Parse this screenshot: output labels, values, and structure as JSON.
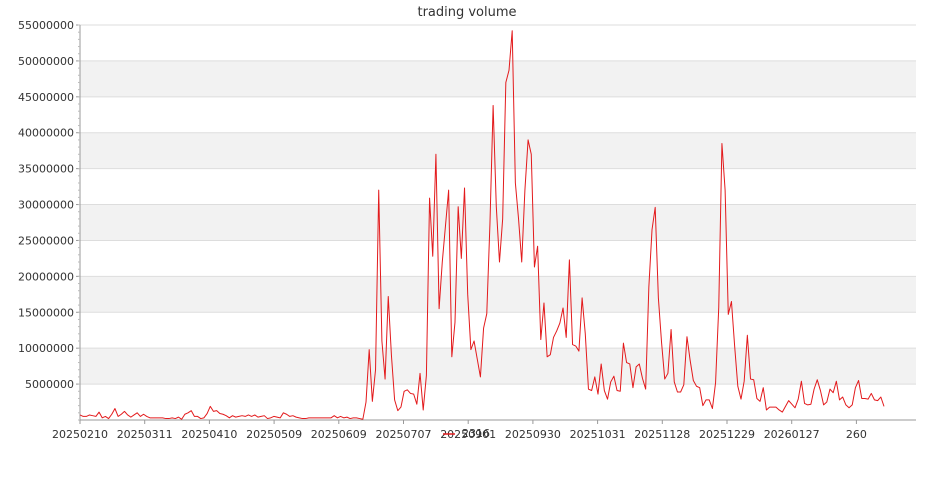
{
  "chart_data": {
    "type": "line",
    "title": "trading volume",
    "xlabel": "",
    "ylabel": "",
    "ylim": [
      0,
      55000000
    ],
    "y_ticks": [
      5000000,
      10000000,
      15000000,
      20000000,
      25000000,
      30000000,
      35000000,
      40000000,
      45000000,
      50000000,
      55000000
    ],
    "x_tick_labels": [
      "20250210",
      "20250311",
      "20250410",
      "20250509",
      "20250609",
      "20250707",
      "20250901",
      "20250930",
      "20251031",
      "20251128",
      "20251229",
      "20260127",
      "260"
    ],
    "grid": "horizontal bands",
    "legend_position": "bottom-center",
    "series": [
      {
        "name": "2316",
        "color": "#e31a1c",
        "values": [
          700000,
          500000,
          500000,
          700000,
          600000,
          500000,
          1100000,
          300000,
          500000,
          200000,
          800000,
          1600000,
          500000,
          800000,
          1200000,
          700000,
          400000,
          700000,
          1000000,
          500000,
          800000,
          500000,
          300000,
          300000,
          300000,
          300000,
          300000,
          200000,
          200000,
          300000,
          200000,
          400000,
          100000,
          800000,
          1000000,
          1300000,
          500000,
          500000,
          200000,
          300000,
          900000,
          1900000,
          1200000,
          1300000,
          900000,
          800000,
          600000,
          300000,
          600000,
          400000,
          500000,
          600000,
          500000,
          700000,
          500000,
          700000,
          400000,
          500000,
          600000,
          200000,
          300000,
          500000,
          400000,
          300000,
          1000000,
          800000,
          500000,
          600000,
          400000,
          300000,
          200000,
          200000,
          300000,
          300000,
          300000,
          300000,
          300000,
          300000,
          300000,
          300000,
          600000,
          300000,
          500000,
          300000,
          400000,
          200000,
          300000,
          300000,
          200000,
          100000,
          2500000,
          9800000,
          2600000,
          7000000,
          32000000,
          11000000,
          5700000,
          17200000,
          9000000,
          2800000,
          1300000,
          1800000,
          4000000,
          4200000,
          3700000,
          3600000,
          2200000,
          6500000,
          1400000,
          6200000,
          30900000,
          22800000,
          37000000,
          15500000,
          22000000,
          27000000,
          32000000,
          8800000,
          13600000,
          29700000,
          22500000,
          32300000,
          17500000,
          9800000,
          11000000,
          8500000,
          6000000,
          12800000,
          14800000,
          27300000,
          43800000,
          29700000,
          22000000,
          28000000,
          47000000,
          48700000,
          54200000,
          33000000,
          28000000,
          22000000,
          32000000,
          39000000,
          37000000,
          21300000,
          24200000,
          11200000,
          16300000,
          8800000,
          9100000,
          11500000,
          12400000,
          13500000,
          15600000,
          11500000,
          22300000,
          10500000,
          10300000,
          9600000,
          17000000,
          12000000,
          4300000,
          4100000,
          6000000,
          3600000,
          7800000,
          4100000,
          2900000,
          5300000,
          6100000,
          4100000,
          4000000,
          10700000,
          8000000,
          7800000,
          4500000,
          7400000,
          7800000,
          5800000,
          4300000,
          18500000,
          26500000,
          29600000,
          17000000,
          10800000,
          5700000,
          6500000,
          12600000,
          5300000,
          3900000,
          3900000,
          4900000,
          11600000,
          8300000,
          5500000,
          4700000,
          4500000,
          2000000,
          2800000,
          2800000,
          1600000,
          5200000,
          15700000,
          38500000,
          32000000,
          14700000,
          16500000,
          10300000,
          4700000,
          2900000,
          5400000,
          11800000,
          5700000,
          5600000,
          3000000,
          2600000,
          4500000,
          1400000,
          1800000,
          1800000,
          1800000,
          1400000,
          1100000,
          1900000,
          2700000,
          2200000,
          1700000,
          2900000,
          5400000,
          2300000,
          2100000,
          2200000,
          4300000,
          5600000,
          4100000,
          2100000,
          2500000,
          4300000,
          3800000,
          5400000,
          2800000,
          3200000,
          2100000,
          1700000,
          2100000,
          4500000,
          5500000,
          3000000,
          3000000,
          2900000,
          3700000,
          2800000,
          2700000,
          3200000,
          1900000
        ]
      }
    ]
  }
}
